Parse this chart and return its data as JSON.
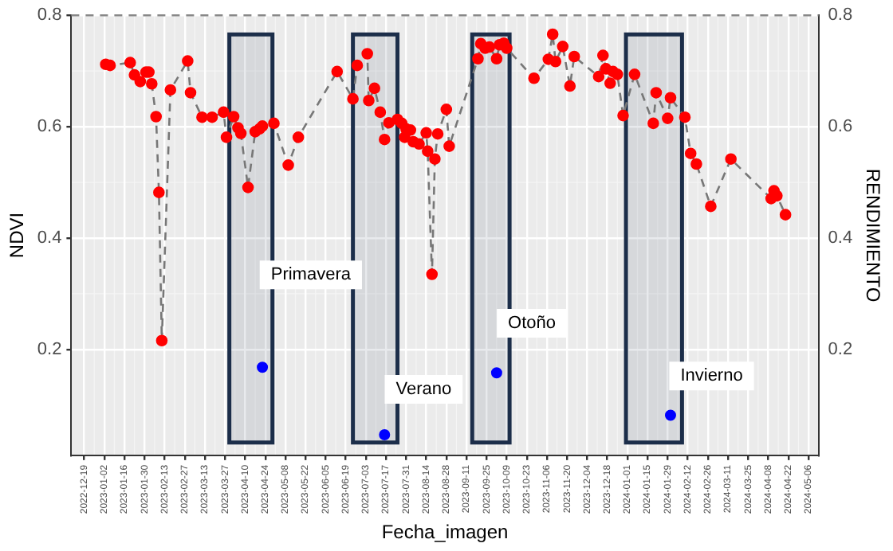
{
  "chart_data": {
    "type": "line",
    "xlabel": "Fecha_imagen",
    "ylabel": "NDVI",
    "y2label": "RENDIMIENTO",
    "xlim": [
      "2022-12-10",
      "2024-05-13"
    ],
    "xticks": [
      "2022-12-19",
      "2023-01-02",
      "2023-01-16",
      "2023-01-30",
      "2023-02-13",
      "2023-02-27",
      "2023-03-13",
      "2023-03-27",
      "2023-04-10",
      "2023-04-24",
      "2023-05-08",
      "2023-05-22",
      "2023-06-05",
      "2023-06-19",
      "2023-07-03",
      "2023-07-17",
      "2023-07-31",
      "2023-08-14",
      "2023-08-28",
      "2023-09-11",
      "2023-09-25",
      "2023-10-09",
      "2023-10-23",
      "2023-11-06",
      "2023-11-20",
      "2023-12-04",
      "2023-12-18",
      "2024-01-01",
      "2024-01-15",
      "2024-01-29",
      "2024-02-12",
      "2024-02-26",
      "2024-03-11",
      "2024-03-25",
      "2024-04-08",
      "2024-04-22",
      "2024-05-06"
    ],
    "ylim": [
      0.01,
      0.8
    ],
    "yticks": [
      0.2,
      0.4,
      0.6,
      0.8
    ],
    "y2lim": [
      0.01,
      0.8
    ],
    "y2ticks": [
      0.2,
      0.4,
      0.6,
      0.8
    ],
    "grid": true,
    "legend": false,
    "marker": "circle",
    "line_style": "dashed",
    "series": [
      {
        "color": "#ff0000",
        "x": [
          "2023-01-03",
          "2023-01-06",
          "2023-01-20",
          "2023-01-23",
          "2023-01-27",
          "2023-01-31",
          "2023-02-02",
          "2023-02-04",
          "2023-02-07",
          "2023-02-09",
          "2023-02-11",
          "2023-02-17",
          "2023-03-01",
          "2023-03-03",
          "2023-03-11",
          "2023-03-18",
          "2023-03-26",
          "2023-03-28",
          "2023-04-02",
          "2023-04-05",
          "2023-04-07",
          "2023-04-12",
          "2023-04-17",
          "2023-04-20",
          "2023-04-22",
          "2023-04-30",
          "2023-05-10",
          "2023-05-17",
          "2023-06-13",
          "2023-06-24",
          "2023-06-27",
          "2023-07-04",
          "2023-07-05",
          "2023-07-09",
          "2023-07-13",
          "2023-07-16",
          "2023-07-19",
          "2023-07-25",
          "2023-07-28",
          "2023-07-30",
          "2023-07-31",
          "2023-08-03",
          "2023-08-05",
          "2023-08-09",
          "2023-08-14",
          "2023-08-15",
          "2023-08-18",
          "2023-08-20",
          "2023-08-22",
          "2023-08-28",
          "2023-08-30",
          "2023-09-19",
          "2023-09-21",
          "2023-09-24",
          "2023-09-27",
          "2023-10-02",
          "2023-10-04",
          "2023-10-07",
          "2023-10-09",
          "2023-10-28",
          "2023-11-07",
          "2023-11-10",
          "2023-11-12",
          "2023-11-17",
          "2023-11-22",
          "2023-11-25",
          "2023-12-12",
          "2023-12-15",
          "2023-12-17",
          "2023-12-20",
          "2023-12-22",
          "2023-12-25",
          "2023-12-29",
          "2024-01-06",
          "2024-01-19",
          "2024-01-21",
          "2024-01-29",
          "2024-01-31",
          "2024-02-10",
          "2024-02-14",
          "2024-02-18",
          "2024-02-28",
          "2024-03-13",
          "2024-04-10",
          "2024-04-12",
          "2024-04-14",
          "2024-04-20"
        ],
        "values": [
          0.712,
          0.71,
          0.715,
          0.693,
          0.681,
          0.698,
          0.698,
          0.677,
          0.618,
          0.482,
          0.216,
          0.666,
          0.718,
          0.661,
          0.617,
          0.617,
          0.626,
          0.581,
          0.618,
          0.598,
          0.588,
          0.491,
          0.591,
          0.596,
          0.601,
          0.606,
          0.531,
          0.581,
          0.699,
          0.65,
          0.71,
          0.731,
          0.647,
          0.669,
          0.626,
          0.577,
          0.607,
          0.613,
          0.606,
          0.581,
          0.596,
          0.594,
          0.573,
          0.569,
          0.589,
          0.556,
          0.335,
          0.542,
          0.587,
          0.631,
          0.565,
          0.722,
          0.749,
          0.741,
          0.743,
          0.722,
          0.747,
          0.75,
          0.741,
          0.687,
          0.721,
          0.766,
          0.717,
          0.744,
          0.673,
          0.726,
          0.69,
          0.728,
          0.704,
          0.678,
          0.699,
          0.694,
          0.62,
          0.694,
          0.606,
          0.661,
          0.615,
          0.652,
          0.617,
          0.552,
          0.533,
          0.457,
          0.542,
          0.471,
          0.485,
          0.476,
          0.442
        ]
      },
      {
        "type": "scatter",
        "color": "#0000ff",
        "x": [
          "2023-04-22",
          "2023-07-16",
          "2023-10-02",
          "2024-01-31"
        ],
        "values": [
          0.168,
          0.047,
          0.158,
          0.082
        ]
      }
    ],
    "ref_lines": [
      {
        "axis": "y",
        "value": 0.8,
        "color": "#888888",
        "line_style": "dashed"
      }
    ],
    "bands": [
      {
        "axis": "x",
        "from": "2023-03-30",
        "to": "2023-04-29",
        "color": "#1c2e4a"
      },
      {
        "axis": "x",
        "from": "2023-06-24",
        "to": "2023-07-25",
        "color": "#1c2e4a"
      },
      {
        "axis": "x",
        "from": "2023-09-15",
        "to": "2023-10-11",
        "color": "#1c2e4a"
      },
      {
        "axis": "x",
        "from": "2023-12-31",
        "to": "2024-02-08",
        "color": "#1c2e4a"
      }
    ],
    "annotations": [
      "Primavera",
      "Verano",
      "Otoño",
      "Invierno"
    ]
  }
}
